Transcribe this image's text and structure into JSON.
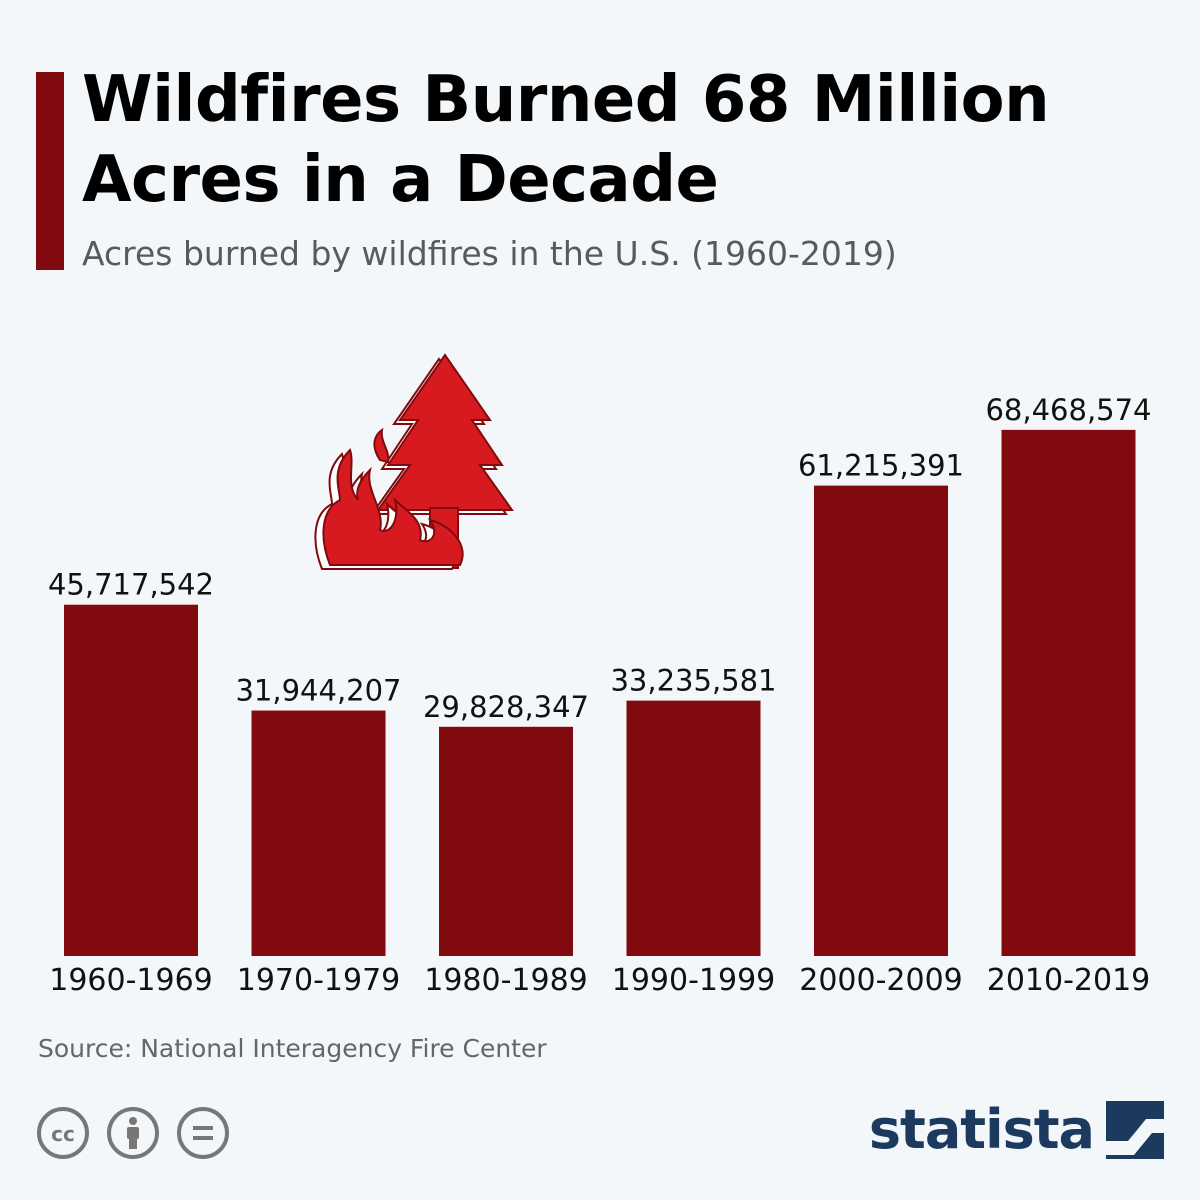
{
  "header": {
    "title": "Wildfires Burned 68 Million Acres in a Decade",
    "subtitle": "Acres burned by wildfires in the U.S. (1960-2019)"
  },
  "chart_data": {
    "type": "bar",
    "categories": [
      "1960-1969",
      "1970-1979",
      "1980-1989",
      "1990-1999",
      "2000-2009",
      "2010-2019"
    ],
    "values": [
      45717542,
      31944207,
      29828347,
      33235581,
      61215391,
      68468574
    ],
    "value_labels": [
      "45,717,542",
      "31,944,207",
      "29,828,347",
      "33,235,581",
      "61,215,391",
      "68,468,574"
    ],
    "title": "Wildfires Burned 68 Million Acres in a Decade",
    "subtitle": "Acres burned by wildfires in the U.S. (1960-2019)",
    "xlabel": "",
    "ylabel": "",
    "ylim": [
      0,
      76000000
    ],
    "grid": false,
    "legend": "none",
    "bar_color": "#800a0d"
  },
  "footer": {
    "source": "Source: National Interagency Fire Center",
    "brand": "statista",
    "license_icons": [
      "creative-commons-icon",
      "attribution-icon",
      "no-derivatives-icon"
    ]
  },
  "colors": {
    "accent": "#800a0d",
    "illustration_red": "#d71920",
    "background": "#f3f7fa",
    "brand_navy": "#1b3a5e"
  },
  "illustration": {
    "icon": "wildfire-tree-icon"
  }
}
